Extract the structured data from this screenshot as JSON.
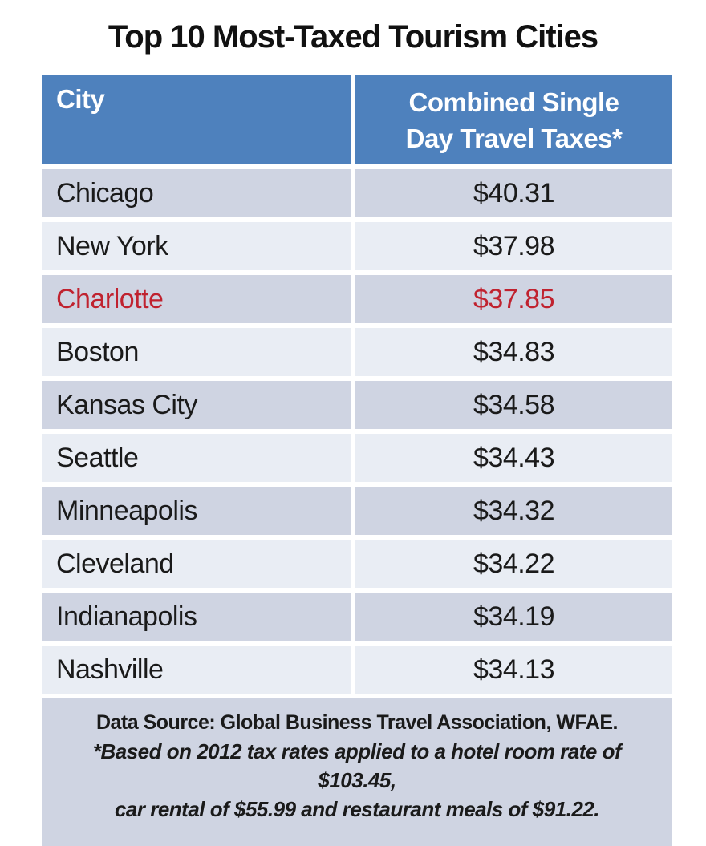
{
  "title": "Top 10 Most-Taxed Tourism Cities",
  "table": {
    "header": {
      "col1": "City",
      "col2_line1": "Combined Single",
      "col2_line2": "Day Travel Taxes*"
    },
    "rows": [
      {
        "city": "Chicago",
        "tax": "$40.31",
        "highlight": false
      },
      {
        "city": "New York",
        "tax": "$37.98",
        "highlight": false
      },
      {
        "city": "Charlotte",
        "tax": "$37.85",
        "highlight": true
      },
      {
        "city": "Boston",
        "tax": "$34.83",
        "highlight": false
      },
      {
        "city": "Kansas City",
        "tax": "$34.58",
        "highlight": false
      },
      {
        "city": "Seattle",
        "tax": "$34.43",
        "highlight": false
      },
      {
        "city": "Minneapolis",
        "tax": "$34.32",
        "highlight": false
      },
      {
        "city": "Cleveland",
        "tax": "$34.22",
        "highlight": false
      },
      {
        "city": "Indianapolis",
        "tax": "$34.19",
        "highlight": false
      },
      {
        "city": "Nashville",
        "tax": "$34.13",
        "highlight": false
      }
    ]
  },
  "footnote": {
    "line1": "Data Source: Global Business Travel Association, WFAE.",
    "line2": "*Based on 2012 tax rates applied to a hotel room rate of $103.45,",
    "line3": "car rental of $55.99 and restaurant meals of $91.22."
  },
  "colors": {
    "header_bg": "#4E81BD",
    "row_dark": "#CFD4E2",
    "row_light": "#E9EDF4",
    "highlight_text": "#C0222F",
    "text": "#1A1A1A"
  },
  "chart_data": {
    "type": "table",
    "title": "Top 10 Most-Taxed Tourism Cities",
    "columns": [
      "City",
      "Combined Single Day Travel Taxes*"
    ],
    "rows": [
      [
        "Chicago",
        40.31
      ],
      [
        "New York",
        37.98
      ],
      [
        "Charlotte",
        37.85
      ],
      [
        "Boston",
        34.83
      ],
      [
        "Kansas City",
        34.58
      ],
      [
        "Seattle",
        34.43
      ],
      [
        "Minneapolis",
        34.32
      ],
      [
        "Cleveland",
        34.22
      ],
      [
        "Indianapolis",
        34.19
      ],
      [
        "Nashville",
        34.13
      ]
    ],
    "value_unit": "USD",
    "highlighted_row": "Charlotte",
    "row_striping": "alternating",
    "footnotes": [
      "Data Source: Global Business Travel Association, WFAE.",
      "*Based on 2012 tax rates applied to a hotel room rate of $103.45, car rental of $55.99 and restaurant meals of $91.22."
    ]
  }
}
